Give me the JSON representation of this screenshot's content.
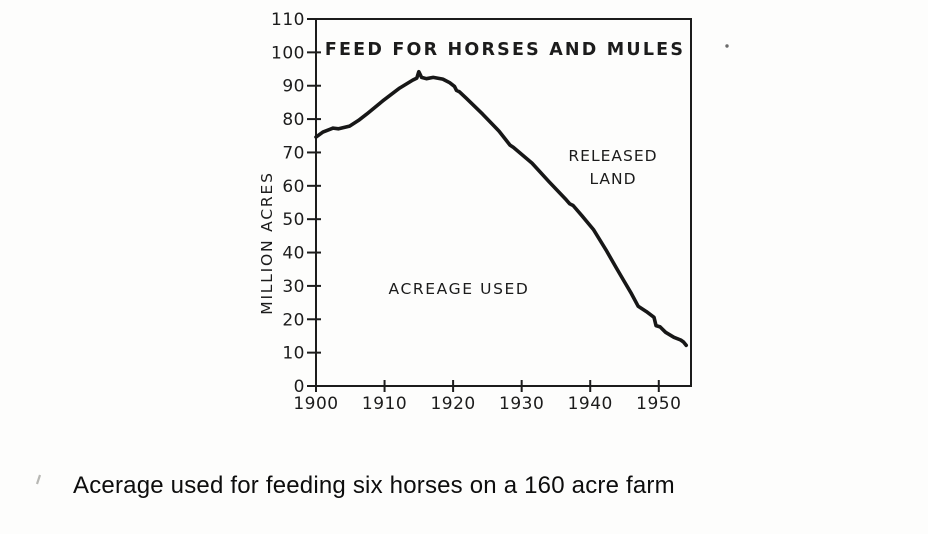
{
  "figure": {
    "caption": "Acerage used for feeding six horses on a 160 acre farm"
  },
  "chart_data": {
    "type": "line",
    "title": "FEED FOR HORSES AND MULES",
    "xlabel": "",
    "ylabel": "MILLION ACRES",
    "x_ticks": [
      1900,
      1910,
      1920,
      1930,
      1940,
      1950
    ],
    "y_ticks": [
      0,
      10,
      20,
      30,
      40,
      50,
      60,
      70,
      80,
      90,
      100,
      110
    ],
    "xlim": [
      1900,
      1954.7
    ],
    "ylim": [
      0,
      110
    ],
    "grid": false,
    "legend": false,
    "ink_color": "#1c1c1c",
    "annotations": [
      {
        "lines": [
          "RELEASED",
          "LAND"
        ],
        "region": "upper right, above curve"
      },
      {
        "lines": [
          "ACREAGE USED"
        ],
        "region": "lower left, below curve"
      }
    ],
    "series": [
      {
        "name": "Acreage used for feed for horses and mules",
        "points": [
          [
            1900,
            74.6
          ],
          [
            1901,
            76.1
          ],
          [
            1902.5,
            77.3
          ],
          [
            1903.3,
            77.1
          ],
          [
            1904.9,
            77.9
          ],
          [
            1906.2,
            79.6
          ],
          [
            1907.4,
            81.5
          ],
          [
            1909.7,
            85.4
          ],
          [
            1912.2,
            89.3
          ],
          [
            1914.1,
            91.7
          ],
          [
            1914.7,
            92.3
          ],
          [
            1915,
            94.2
          ],
          [
            1915.4,
            92.5
          ],
          [
            1916.1,
            92.1
          ],
          [
            1917.1,
            92.5
          ],
          [
            1918.5,
            92
          ],
          [
            1919.5,
            90.9
          ],
          [
            1920.2,
            89.8
          ],
          [
            1920.5,
            88.6
          ],
          [
            1920.9,
            88.2
          ],
          [
            1921.9,
            86.3
          ],
          [
            1924.3,
            81.5
          ],
          [
            1926.7,
            76.4
          ],
          [
            1928.3,
            72.2
          ],
          [
            1928.8,
            71.5
          ],
          [
            1931.5,
            66.8
          ],
          [
            1934,
            61.2
          ],
          [
            1936.5,
            55.8
          ],
          [
            1937,
            54.6
          ],
          [
            1937.5,
            54.1
          ],
          [
            1938.8,
            51
          ],
          [
            1940.5,
            46.8
          ],
          [
            1942.3,
            40.8
          ],
          [
            1943.8,
            35.4
          ],
          [
            1945,
            31.2
          ],
          [
            1946,
            27.7
          ],
          [
            1947,
            23.9
          ],
          [
            1948.2,
            22.3
          ],
          [
            1949.3,
            20.6
          ],
          [
            1949.6,
            18.1
          ],
          [
            1950.2,
            17.7
          ],
          [
            1951,
            16.1
          ],
          [
            1952.2,
            14.6
          ],
          [
            1953.2,
            13.8
          ],
          [
            1953.6,
            13.2
          ],
          [
            1954,
            12.2
          ]
        ]
      }
    ]
  }
}
